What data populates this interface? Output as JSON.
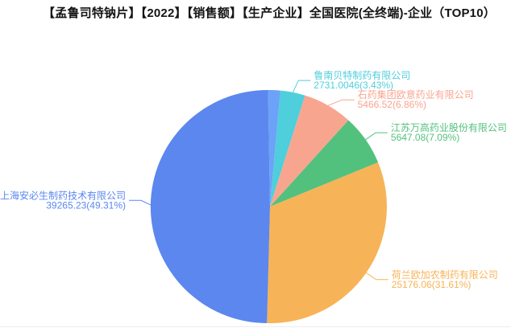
{
  "title": "【孟鲁司特钠片】【2022】【销售额】【生产企业】全国医院(全终端)-企业（TOP10）",
  "chart_data": {
    "type": "pie",
    "title": "【孟鲁司特钠片】【2022】【销售额】【生产企业】全国医院(全终端)-企业（TOP10）",
    "legend": "none",
    "start_angle_deg": -1,
    "direction": "clockwise",
    "label_format": "name / value(percent%)",
    "slices": [
      {
        "name": "",
        "value": null,
        "percent": 1.7,
        "value_label": "",
        "color": "#6CA2F8",
        "label_visible": false
      },
      {
        "name": "鲁南贝特制药有限公司",
        "value": 2731.0046,
        "percent": 3.43,
        "value_label": "2731.0046(3.43%)",
        "color": "#4FCEDC",
        "label_visible": true
      },
      {
        "name": "石药集团欧意药业有限公司",
        "value": 5466.52,
        "percent": 6.86,
        "value_label": "5466.52(6.86%)",
        "color": "#F8A590",
        "label_visible": true
      },
      {
        "name": "江苏万高药业股份有限公司",
        "value": 5647.08,
        "percent": 7.09,
        "value_label": "5647.08(7.09%)",
        "color": "#53C17E",
        "label_visible": true
      },
      {
        "name": "荷兰欧加农制药有限公司",
        "value": 25176.06,
        "percent": 31.61,
        "value_label": "25176.06(31.61%)",
        "color": "#F7B357",
        "label_visible": true
      },
      {
        "name": "上海安必生制药技术有限公司",
        "value": 39265.23,
        "percent": 49.31,
        "value_label": "39265.23(49.31%)",
        "color": "#5B87EE",
        "label_visible": true
      }
    ]
  }
}
